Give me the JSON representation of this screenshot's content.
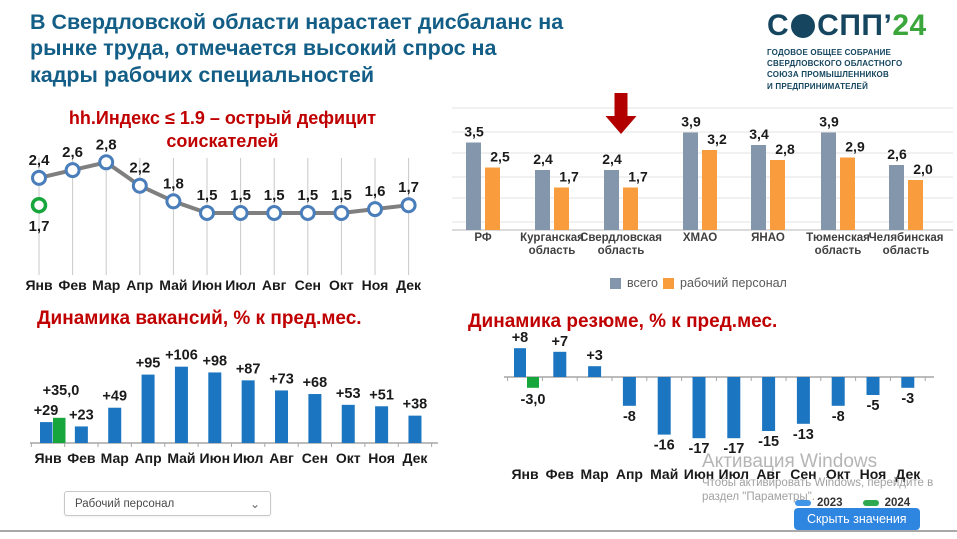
{
  "header": {
    "title": "В Свердловской области нарастает дисбаланс на рынке труда, отмечается высокий спрос на кадры рабочих специальностей",
    "logo": {
      "brand_prefix": "С",
      "brand_suffix": "СПП",
      "brand_apostrophe": "’",
      "brand_year": "24",
      "subtitle_lines": [
        "ГОДОВОЕ ОБЩЕЕ СОБРАНИЕ",
        "СВЕРДЛОВСКОГО ОБЛАСТНОГО",
        "СОЮЗА ПРОМЫШЛЕННИКОВ",
        "И ПРЕДПРИНИМАТЕЛЕЙ"
      ]
    }
  },
  "colors": {
    "title_blue": "#135e86",
    "accent_red": "#c00000",
    "bar_blue": "#1b75c0",
    "bar_green": "#17a63b",
    "bar_gray": "#8496ab",
    "bar_orange": "#f89c3e",
    "arrow_red": "#b20000",
    "line_gray": "#7f7f7f",
    "marker_blue": "#4a7ebb",
    "button_blue": "#2f86e0"
  },
  "chart_data": [
    {
      "id": "hh_index",
      "type": "line",
      "title": "hh.Индекс ≤ 1.9 – острый дефицит соискателей",
      "categories": [
        "Янв",
        "Фев",
        "Мар",
        "Апр",
        "Май",
        "Июн",
        "Июл",
        "Авг",
        "Сен",
        "Окт",
        "Ноя",
        "Дек"
      ],
      "series": [
        {
          "name": "2023",
          "color": "#7f7f7f",
          "marker_color": "#4a7ebb",
          "values": [
            2.4,
            2.6,
            2.8,
            2.2,
            1.8,
            1.5,
            1.5,
            1.5,
            1.5,
            1.5,
            1.6,
            1.7
          ],
          "value_labels": [
            "2,4",
            "2,6",
            "2,8",
            "2,2",
            "1,8",
            "1,5",
            "1,5",
            "1,5",
            "1,5",
            "1,5",
            "1,6",
            "1,7"
          ]
        },
        {
          "name": "2024",
          "color": "#17a63b",
          "marker_color": "#17a63b",
          "values": [
            1.7
          ],
          "value_labels": [
            "1,7"
          ]
        }
      ],
      "ylim": [
        1.3,
        3.0
      ],
      "grid": "vertical"
    },
    {
      "id": "regions",
      "type": "bar",
      "categories": [
        "РФ",
        "Курганская область",
        "Свердловская область",
        "ХМАО",
        "ЯНАО",
        "Тюменская область",
        "Челябинская область"
      ],
      "series": [
        {
          "name": "всего",
          "color": "#8496ab",
          "values": [
            3.5,
            2.4,
            2.4,
            3.9,
            3.4,
            3.9,
            2.6
          ],
          "value_labels": [
            "3,5",
            "2,4",
            "2,4",
            "3,9",
            "3,4",
            "3,9",
            "2,6"
          ]
        },
        {
          "name": "рабочий персонал",
          "color": "#f89c3e",
          "values": [
            2.5,
            1.7,
            1.7,
            3.2,
            2.8,
            2.9,
            2.0
          ],
          "value_labels": [
            "2,5",
            "1,7",
            "1,7",
            "3,2",
            "2,8",
            "2,9",
            "2,0"
          ]
        }
      ],
      "highlight": {
        "category": "Свердловская область",
        "marker": "red-arrow-down",
        "color": "#b20000"
      },
      "legend_position": "bottom",
      "ylim": [
        0,
        4.5
      ],
      "grid": "horizontal"
    },
    {
      "id": "vacancies",
      "type": "bar",
      "title": "Динамика вакансий, % к пред.мес.",
      "categories": [
        "Янв",
        "Фев",
        "Мар",
        "Апр",
        "Май",
        "Июн",
        "Июл",
        "Авг",
        "Сен",
        "Окт",
        "Ноя",
        "Дек"
      ],
      "series": [
        {
          "name": "2023",
          "color": "#1b75c0",
          "values": [
            29,
            23,
            49,
            95,
            106,
            98,
            87,
            73,
            68,
            53,
            51,
            38
          ],
          "value_labels": [
            "+29",
            "+23",
            "+49",
            "+95",
            "+106",
            "+98",
            "+87",
            "+73",
            "+68",
            "+53",
            "+51",
            "+38"
          ]
        },
        {
          "name": "2024",
          "color": "#17a63b",
          "values": [
            35.0
          ],
          "value_labels": [
            "+35,0"
          ]
        }
      ],
      "ylim": [
        0,
        120
      ],
      "grid": "off"
    },
    {
      "id": "resumes",
      "type": "bar",
      "title": "Динамика резюме, % к пред.мес.",
      "categories": [
        "Янв",
        "Фев",
        "Мар",
        "Апр",
        "Май",
        "Июн",
        "Июл",
        "Авг",
        "Сен",
        "Окт",
        "Ноя",
        "Дек"
      ],
      "series": [
        {
          "name": "2023",
          "color": "#1b75c0",
          "values": [
            8,
            7,
            3,
            -8,
            -16,
            -17,
            -17,
            -15,
            -13,
            -8,
            -5,
            -3
          ],
          "value_labels": [
            "+8",
            "+7",
            "+3",
            "-8",
            "-16",
            "-17",
            "-17",
            "-15",
            "-13",
            "-8",
            "-5",
            "-3"
          ]
        },
        {
          "name": "2024",
          "color": "#17a63b",
          "values": [
            -3.0
          ],
          "value_labels": [
            "-3,0"
          ]
        }
      ],
      "ylim": [
        -20,
        10
      ],
      "grid": "off"
    }
  ],
  "controls": {
    "dropdown_value": "Рабочий персонал",
    "hide_values_label": "Скрыть значения"
  },
  "years_legend": {
    "items": [
      {
        "label": "2023",
        "color": "#3f94e8"
      },
      {
        "label": "2024",
        "color": "#2fa84f"
      }
    ]
  },
  "watermark": {
    "title": "Активация Windows",
    "line1": "Чтобы активировать Windows, перейдите в",
    "line2": "раздел \"Параметры\"."
  }
}
